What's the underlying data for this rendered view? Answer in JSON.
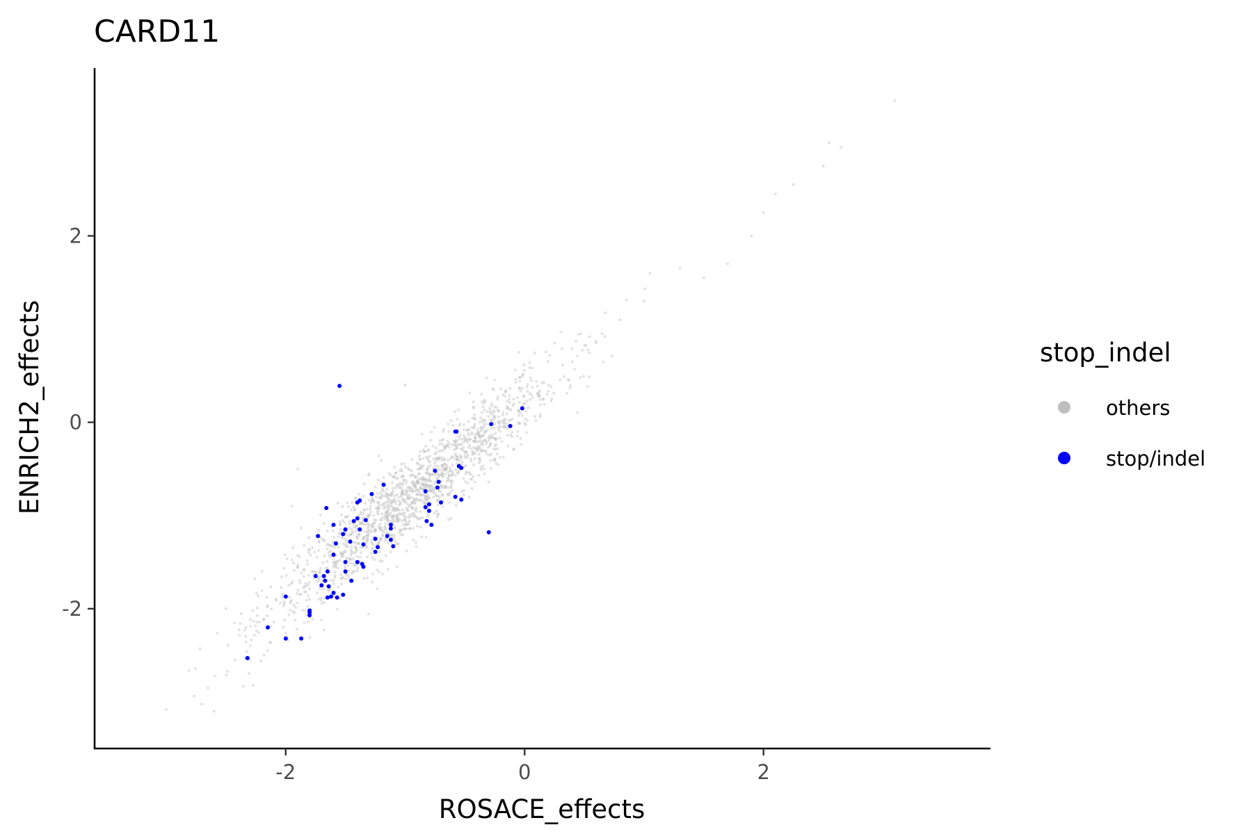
{
  "chart_data": {
    "type": "scatter",
    "title": "CARD11",
    "xlabel": "ROSACE_effects",
    "ylabel": "ENRICH2_effects",
    "xlim": [
      -3.6,
      3.9
    ],
    "ylim": [
      -3.5,
      3.8
    ],
    "x_ticks": [
      -2,
      0,
      2
    ],
    "y_ticks": [
      -2,
      0,
      2
    ],
    "grid": false,
    "legend": {
      "title": "stop_indel",
      "position": "right",
      "entries": [
        {
          "label": "others",
          "color": "#bebebe"
        },
        {
          "label": "stop/indel",
          "color": "#0000ff"
        }
      ]
    },
    "series": [
      {
        "name": "others",
        "color": "#bebebe",
        "point_count": 1600,
        "trend": {
          "slope": 1.05,
          "intercept": 0.2,
          "noise_sd": 0.22
        },
        "x_range": [
          -3.0,
          3.1
        ],
        "points": [
          [
            -3.0,
            -3.08
          ],
          [
            -2.65,
            -2.85
          ],
          [
            -2.6,
            -3.1
          ],
          [
            -2.3,
            -2.55
          ],
          [
            -2.15,
            -2.45
          ],
          [
            -2.0,
            -2.3
          ],
          [
            -1.8,
            -1.9
          ],
          [
            -1.6,
            -1.7
          ],
          [
            -1.4,
            -1.5
          ],
          [
            -1.2,
            -1.25
          ],
          [
            -1.0,
            -1.05
          ],
          [
            -0.8,
            -0.8
          ],
          [
            -0.6,
            -0.55
          ],
          [
            -0.4,
            -0.3
          ],
          [
            -0.2,
            -0.05
          ],
          [
            0.0,
            0.2
          ],
          [
            0.2,
            0.4
          ],
          [
            0.4,
            0.65
          ],
          [
            0.6,
            0.85
          ],
          [
            0.8,
            1.1
          ],
          [
            1.0,
            1.3
          ],
          [
            1.5,
            1.55
          ],
          [
            1.7,
            1.7
          ],
          [
            1.9,
            2.0
          ],
          [
            2.0,
            2.25
          ],
          [
            2.1,
            2.45
          ],
          [
            2.25,
            2.55
          ],
          [
            2.5,
            2.75
          ],
          [
            2.55,
            3.0
          ],
          [
            2.65,
            2.95
          ],
          [
            3.1,
            3.45
          ],
          [
            -1.9,
            -0.5
          ],
          [
            -1.95,
            -0.9
          ],
          [
            -1.0,
            0.4
          ],
          [
            -0.05,
            0.75
          ],
          [
            0.25,
            0.85
          ],
          [
            1.05,
            1.6
          ],
          [
            1.3,
            1.65
          ],
          [
            -2.5,
            -2.0
          ],
          [
            -2.2,
            -1.6
          ]
        ]
      },
      {
        "name": "stop/indel",
        "color": "#0000ff",
        "points": [
          [
            -1.55,
            0.39
          ],
          [
            -0.58,
            -0.1
          ],
          [
            -0.57,
            -0.1
          ],
          [
            -0.28,
            -0.02
          ],
          [
            -0.12,
            -0.04
          ],
          [
            -0.02,
            0.15
          ],
          [
            -0.3,
            -1.18
          ],
          [
            -0.53,
            -0.49
          ],
          [
            -0.55,
            -0.47
          ],
          [
            -0.53,
            -0.83
          ],
          [
            -0.58,
            -0.8
          ],
          [
            -0.7,
            -0.86
          ],
          [
            -0.75,
            -0.52
          ],
          [
            -0.72,
            -0.64
          ],
          [
            -0.73,
            -0.7
          ],
          [
            -0.8,
            -0.88
          ],
          [
            -0.8,
            -0.95
          ],
          [
            -0.83,
            -0.74
          ],
          [
            -0.83,
            -0.91
          ],
          [
            -0.78,
            -1.1
          ],
          [
            -0.82,
            -1.06
          ],
          [
            -1.12,
            -1.1
          ],
          [
            -1.12,
            -1.14
          ],
          [
            -1.15,
            -1.22
          ],
          [
            -1.12,
            -1.26
          ],
          [
            -1.1,
            -1.33
          ],
          [
            -1.18,
            -0.67
          ],
          [
            -1.25,
            -1.25
          ],
          [
            -1.25,
            -1.39
          ],
          [
            -1.23,
            -1.34
          ],
          [
            -1.28,
            -0.77
          ],
          [
            -1.33,
            -1.05
          ],
          [
            -1.35,
            -1.31
          ],
          [
            -1.38,
            -1.15
          ],
          [
            -1.38,
            -0.84
          ],
          [
            -1.4,
            -0.86
          ],
          [
            -1.4,
            -1.03
          ],
          [
            -1.43,
            -1.06
          ],
          [
            -1.4,
            -1.5
          ],
          [
            -1.35,
            -1.55
          ],
          [
            -1.36,
            -1.52
          ],
          [
            -1.5,
            -1.6
          ],
          [
            -1.45,
            -1.7
          ],
          [
            -1.5,
            -1.5
          ],
          [
            -1.46,
            -1.28
          ],
          [
            -1.5,
            -1.15
          ],
          [
            -1.52,
            -1.2
          ],
          [
            -1.58,
            -1.3
          ],
          [
            -1.6,
            -1.1
          ],
          [
            -1.6,
            -1.42
          ],
          [
            -1.65,
            -1.6
          ],
          [
            -1.66,
            -0.92
          ],
          [
            -1.73,
            -1.22
          ],
          [
            -1.68,
            -1.65
          ],
          [
            -1.67,
            -1.7
          ],
          [
            -1.7,
            -1.75
          ],
          [
            -1.64,
            -1.76
          ],
          [
            -1.75,
            -1.65
          ],
          [
            -1.62,
            -1.87
          ],
          [
            -1.6,
            -1.83
          ],
          [
            -1.57,
            -1.88
          ],
          [
            -1.52,
            -1.85
          ],
          [
            -1.65,
            -1.88
          ],
          [
            -1.8,
            -2.02
          ],
          [
            -1.8,
            -2.07
          ],
          [
            -2.0,
            -1.87
          ],
          [
            -2.0,
            -2.32
          ],
          [
            -2.15,
            -2.2
          ],
          [
            -1.87,
            -2.32
          ],
          [
            -1.8,
            -2.04
          ],
          [
            -2.32,
            -2.53
          ]
        ]
      }
    ]
  }
}
